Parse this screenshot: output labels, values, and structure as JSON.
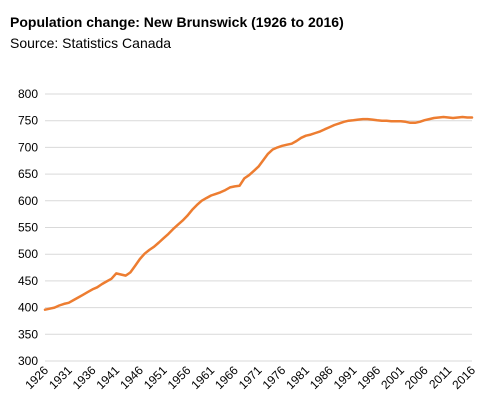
{
  "chart_data": {
    "type": "line",
    "title": "Population change: New Brunswick (1926 to 2016)",
    "subtitle": "Source: Statistics Canada",
    "xlabel": "",
    "ylabel": "",
    "ylim": [
      300,
      800
    ],
    "yticks": [
      300,
      350,
      400,
      450,
      500,
      550,
      600,
      650,
      700,
      750,
      800
    ],
    "xticks": [
      "1926",
      "1931",
      "1936",
      "1941",
      "1946",
      "1951",
      "1956",
      "1961",
      "1966",
      "1971",
      "1976",
      "1981",
      "1986",
      "1991",
      "1996",
      "2001",
      "2006",
      "2011",
      "2016"
    ],
    "grid": true,
    "legend": false,
    "color": "#ed7d31",
    "x": [
      1926,
      1927,
      1928,
      1929,
      1930,
      1931,
      1932,
      1933,
      1934,
      1935,
      1936,
      1937,
      1938,
      1939,
      1940,
      1941,
      1942,
      1943,
      1944,
      1945,
      1946,
      1947,
      1948,
      1949,
      1950,
      1951,
      1952,
      1953,
      1954,
      1955,
      1956,
      1957,
      1958,
      1959,
      1960,
      1961,
      1962,
      1963,
      1964,
      1965,
      1966,
      1967,
      1968,
      1969,
      1970,
      1971,
      1972,
      1973,
      1974,
      1975,
      1976,
      1977,
      1978,
      1979,
      1980,
      1981,
      1982,
      1983,
      1984,
      1985,
      1986,
      1987,
      1988,
      1989,
      1990,
      1991,
      1992,
      1993,
      1994,
      1995,
      1996,
      1997,
      1998,
      1999,
      2000,
      2001,
      2002,
      2003,
      2004,
      2005,
      2006,
      2007,
      2008,
      2009,
      2010,
      2011,
      2012,
      2013,
      2014,
      2015,
      2016
    ],
    "values": [
      396,
      398,
      400,
      404,
      407,
      409,
      414,
      419,
      424,
      429,
      434,
      438,
      444,
      449,
      454,
      464,
      462,
      460,
      466,
      478,
      491,
      501,
      508,
      514,
      522,
      530,
      538,
      547,
      555,
      563,
      572,
      583,
      592,
      600,
      605,
      610,
      613,
      616,
      620,
      625,
      627,
      628,
      642,
      648,
      656,
      664,
      676,
      688,
      696,
      700,
      703,
      705,
      707,
      712,
      718,
      722,
      724,
      727,
      730,
      734,
      738,
      742,
      745,
      748,
      750,
      751,
      752,
      753,
      753,
      752,
      751,
      750,
      750,
      749,
      749,
      749,
      748,
      746,
      746,
      748,
      751,
      753,
      755,
      756,
      757,
      756,
      755,
      756,
      757,
      756,
      756
    ]
  }
}
